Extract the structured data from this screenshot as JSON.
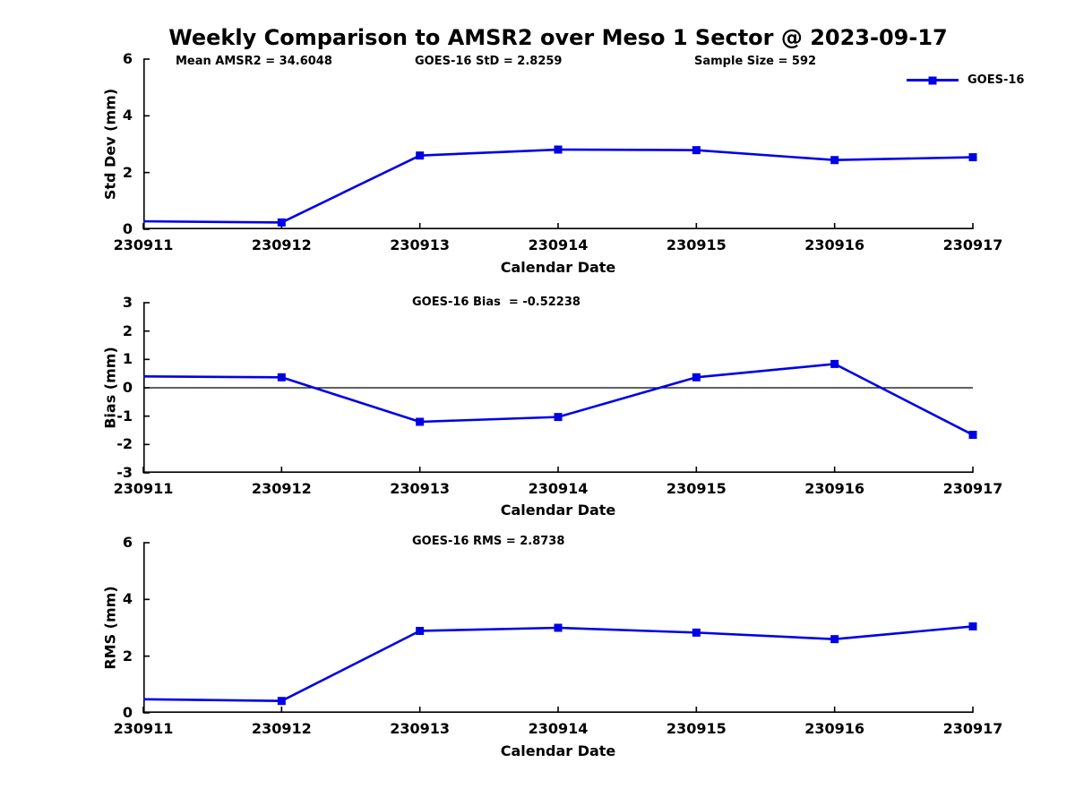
{
  "title": "Weekly Comparison to AMSR2 over Meso 1 Sector @ 2023-09-17",
  "legend": {
    "label": "GOES-16",
    "position": "top-right"
  },
  "colors": {
    "line": "#0000E6",
    "axis": "#000000",
    "zero_line": "#000000",
    "background": "#FFFFFF"
  },
  "chart_data": [
    {
      "type": "line",
      "name": "std_dev",
      "ylabel": "Std Dev (mm)",
      "xlabel": "Calendar Date",
      "ylim": [
        0,
        6
      ],
      "yticks": [
        0,
        2,
        4,
        6
      ],
      "grid": false,
      "x": [
        "230911",
        "230912",
        "230913",
        "230914",
        "230915",
        "230916",
        "230917"
      ],
      "series": [
        {
          "name": "GOES-16",
          "values": [
            0.28,
            0.24,
            2.6,
            2.81,
            2.79,
            2.44,
            2.54
          ]
        }
      ],
      "annotations": [
        "Mean AMSR2 = 34.6048",
        "GOES-16 StD = 2.8259",
        "Sample Size = 592"
      ]
    },
    {
      "type": "line",
      "name": "bias",
      "ylabel": "Bias (mm)",
      "xlabel": "Calendar Date",
      "ylim": [
        -3,
        3
      ],
      "yticks": [
        -3,
        -2,
        -1,
        0,
        1,
        2,
        3
      ],
      "zero_line": true,
      "grid": false,
      "x": [
        "230911",
        "230912",
        "230913",
        "230914",
        "230915",
        "230916",
        "230917"
      ],
      "series": [
        {
          "name": "GOES-16",
          "values": [
            0.4,
            0.37,
            -1.2,
            -1.03,
            0.37,
            0.84,
            -1.66
          ]
        }
      ],
      "annotations": [
        "GOES-16 Bias  = -0.52238"
      ]
    },
    {
      "type": "line",
      "name": "rms",
      "ylabel": "RMS (mm)",
      "xlabel": "Calendar Date",
      "ylim": [
        0,
        6
      ],
      "yticks": [
        0,
        2,
        4,
        6
      ],
      "grid": false,
      "x": [
        "230911",
        "230912",
        "230913",
        "230914",
        "230915",
        "230916",
        "230917"
      ],
      "series": [
        {
          "name": "GOES-16",
          "values": [
            0.48,
            0.42,
            2.89,
            3.0,
            2.83,
            2.6,
            3.05
          ]
        }
      ],
      "annotations": [
        "GOES-16 RMS = 2.8738"
      ]
    }
  ]
}
